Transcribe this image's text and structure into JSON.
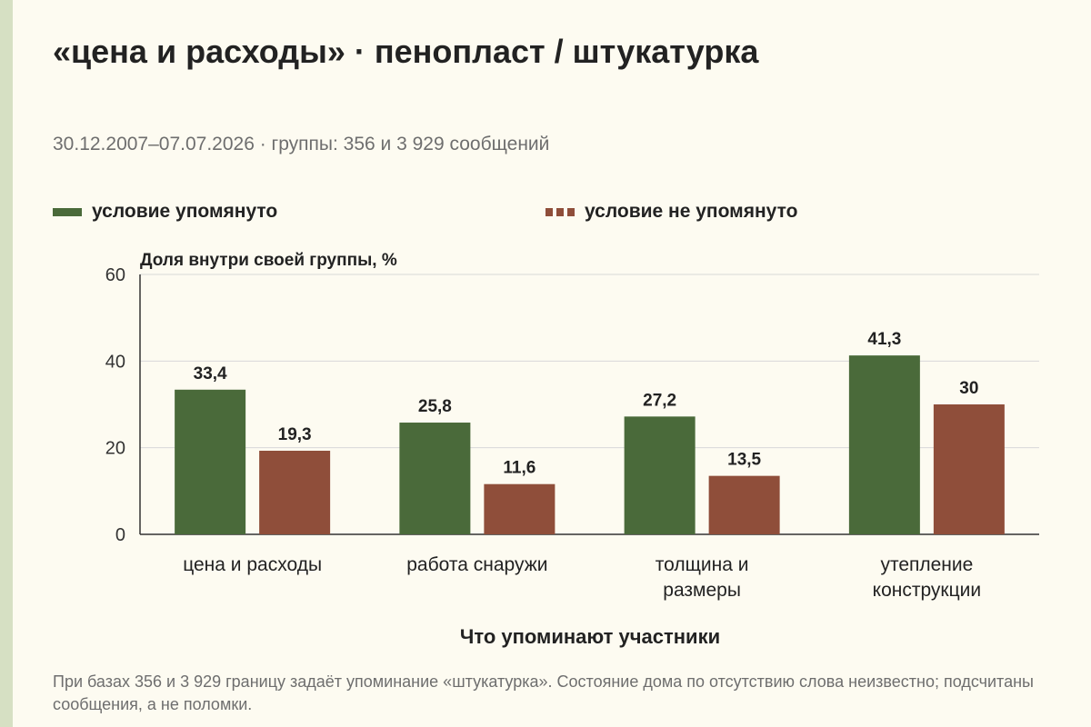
{
  "title": "«цена и расходы» · пенопласт / штукатурка",
  "subtitle": "30.12.2007–07.07.2026 · группы: 356 и 3 929 сообщений",
  "note": "При базах 356 и 3 929 границу задаёт упоминание «штукатурка». Состояние дома по отсутствию слова неизвестно; подсчитаны сообщения, а не поломки.",
  "colors": {
    "background": "#fdfbf1",
    "stripe": "#d6e0c3",
    "mentioned": "#4a6a3a",
    "not_mentioned": "#8f4e3a",
    "grid": "#d8d8d8",
    "axis": "#333333"
  },
  "chart_data": {
    "type": "bar",
    "categories": [
      [
        "цена и расходы"
      ],
      [
        "работа снаружи"
      ],
      [
        "толщина и",
        "размеры"
      ],
      [
        "утепление",
        "конструкции"
      ]
    ],
    "series": [
      {
        "name": "условие упомянуто",
        "values": [
          33.4,
          25.8,
          27.2,
          41.3
        ],
        "labels": [
          "33,4",
          "25,8",
          "27,2",
          "41,3"
        ],
        "color": "#4a6a3a",
        "legend_style": "solid"
      },
      {
        "name": "условие не упомянуто",
        "values": [
          19.3,
          11.6,
          13.5,
          30
        ],
        "labels": [
          "19,3",
          "11,6",
          "13,5",
          "30"
        ],
        "color": "#8f4e3a",
        "legend_style": "dashed"
      }
    ],
    "ylabel": "Доля внутри своей группы, %",
    "xlabel": "Что упоминают участники",
    "ylim": [
      0,
      60
    ],
    "yticks": [
      0,
      20,
      40,
      60
    ],
    "grid": true,
    "legend_position": "top"
  }
}
